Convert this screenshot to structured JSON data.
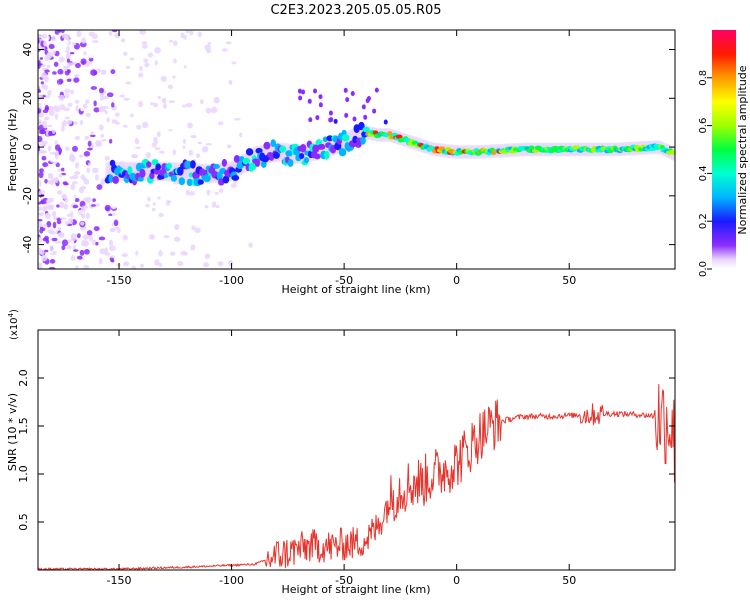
{
  "chart_data": [
    {
      "type": "heatmap",
      "title": "C2E3.2023.205.05.05.R05",
      "xlabel": "Height of straight line (km)",
      "ylabel": "Frequency (Hz)",
      "xlim": [
        -186,
        97
      ],
      "ylim": [
        -50,
        48
      ],
      "xticks": [
        "-150",
        "-100",
        "-50",
        "0",
        "50"
      ],
      "xtick_values": [
        -150,
        -100,
        -50,
        0,
        50
      ],
      "yticks": [
        "-40",
        "-20",
        "0",
        "20",
        "40"
      ],
      "ytick_values": [
        -40,
        -20,
        0,
        20,
        40
      ],
      "colorbar": {
        "label": "Normalized spectral amplitude",
        "range": [
          0,
          1
        ],
        "ticks": [
          "0.0",
          "0.2",
          "0.4",
          "0.6",
          "0.8"
        ],
        "tick_values": [
          0.0,
          0.2,
          0.4,
          0.6,
          0.8
        ]
      },
      "ridge_trace": {
        "x": [
          -150,
          -130,
          -110,
          -100,
          -90,
          -80,
          -70,
          -60,
          -50,
          -40,
          -35,
          -30,
          -20,
          -10,
          0,
          10,
          30,
          50,
          70,
          90,
          97
        ],
        "freq": [
          -10,
          -10,
          -11,
          -10,
          -4,
          -2,
          -3,
          -1,
          2,
          6,
          5,
          5,
          2,
          -1,
          -2,
          -2,
          -1,
          -1,
          -1,
          0,
          -3
        ]
      }
    },
    {
      "type": "line",
      "xlabel": "Height of straight line (km)",
      "ylabel": "SNR (10 * v/v)",
      "scale_label": "(x10",
      "scale_exponent": "4",
      "scale_suffix": ")",
      "xlim": [
        -186,
        97
      ],
      "ylim": [
        0,
        2.5
      ],
      "xticks": [
        "-150",
        "-100",
        "-50",
        "0",
        "50"
      ],
      "xtick_values": [
        -150,
        -100,
        -50,
        0,
        50
      ],
      "yticks": [
        "0.5",
        "1.0",
        "1.5",
        "2.0"
      ],
      "ytick_values": [
        0.5,
        1.0,
        1.5,
        2.0
      ],
      "color": "#e8332c",
      "series": [
        {
          "name": "SNR",
          "x": [
            -186,
            -150,
            -120,
            -100,
            -90,
            -85,
            -80,
            -75,
            -70,
            -65,
            -60,
            -55,
            -50,
            -45,
            -40,
            -35,
            -30,
            -25,
            -20,
            -15,
            -10,
            -5,
            0,
            5,
            10,
            15,
            20,
            25,
            30,
            40,
            50,
            60,
            70,
            80,
            90,
            95,
            97
          ],
          "y": [
            0.01,
            0.01,
            0.03,
            0.05,
            0.06,
            0.1,
            0.15,
            0.18,
            0.22,
            0.25,
            0.25,
            0.24,
            0.27,
            0.28,
            0.32,
            0.45,
            0.72,
            0.85,
            0.9,
            0.92,
            1.0,
            1.05,
            1.12,
            1.25,
            1.4,
            1.5,
            1.55,
            1.58,
            1.6,
            1.6,
            1.61,
            1.62,
            1.63,
            1.62,
            1.6,
            1.55,
            1.3
          ]
        }
      ]
    }
  ]
}
